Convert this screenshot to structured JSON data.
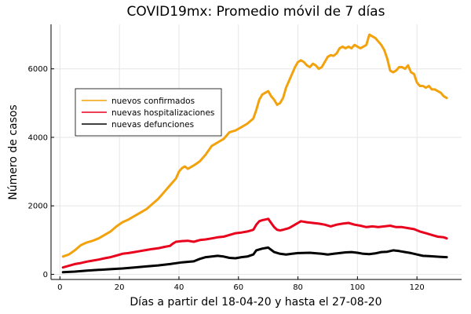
{
  "chart_data": {
    "type": "line",
    "title": "COVID19mx: Promedio móvil de 7 días",
    "xlabel": "Días a partir del 18-04-20 y hasta el 27-08-20",
    "ylabel": "Número de casos",
    "xlim": [
      -3,
      135
    ],
    "ylim": [
      -150,
      7300
    ],
    "xticks": [
      0,
      20,
      40,
      60,
      80,
      100,
      120
    ],
    "yticks": [
      0,
      2000,
      4000,
      6000
    ],
    "grid": true,
    "legend_position": "upper-left",
    "series": [
      {
        "name": "nuevos confirmados",
        "color": "#f2a20c",
        "points": [
          [
            1,
            520
          ],
          [
            3,
            580
          ],
          [
            5,
            700
          ],
          [
            7,
            850
          ],
          [
            9,
            930
          ],
          [
            11,
            980
          ],
          [
            13,
            1050
          ],
          [
            15,
            1150
          ],
          [
            17,
            1250
          ],
          [
            19,
            1400
          ],
          [
            21,
            1520
          ],
          [
            23,
            1600
          ],
          [
            25,
            1700
          ],
          [
            27,
            1800
          ],
          [
            29,
            1900
          ],
          [
            31,
            2050
          ],
          [
            33,
            2200
          ],
          [
            35,
            2400
          ],
          [
            37,
            2600
          ],
          [
            39,
            2800
          ],
          [
            40,
            3000
          ],
          [
            41,
            3100
          ],
          [
            42,
            3150
          ],
          [
            43,
            3080
          ],
          [
            45,
            3180
          ],
          [
            47,
            3300
          ],
          [
            49,
            3500
          ],
          [
            51,
            3750
          ],
          [
            53,
            3850
          ],
          [
            55,
            3950
          ],
          [
            57,
            4150
          ],
          [
            59,
            4200
          ],
          [
            61,
            4300
          ],
          [
            63,
            4400
          ],
          [
            65,
            4550
          ],
          [
            66,
            4800
          ],
          [
            67,
            5100
          ],
          [
            68,
            5250
          ],
          [
            69,
            5300
          ],
          [
            70,
            5350
          ],
          [
            71,
            5200
          ],
          [
            72,
            5100
          ],
          [
            73,
            4950
          ],
          [
            74,
            5000
          ],
          [
            75,
            5150
          ],
          [
            76,
            5450
          ],
          [
            77,
            5650
          ],
          [
            78,
            5850
          ],
          [
            79,
            6050
          ],
          [
            80,
            6200
          ],
          [
            81,
            6250
          ],
          [
            82,
            6200
          ],
          [
            83,
            6100
          ],
          [
            84,
            6050
          ],
          [
            85,
            6150
          ],
          [
            86,
            6100
          ],
          [
            87,
            6000
          ],
          [
            88,
            6050
          ],
          [
            89,
            6200
          ],
          [
            90,
            6350
          ],
          [
            91,
            6400
          ],
          [
            92,
            6380
          ],
          [
            93,
            6450
          ],
          [
            94,
            6600
          ],
          [
            95,
            6650
          ],
          [
            96,
            6600
          ],
          [
            97,
            6650
          ],
          [
            98,
            6600
          ],
          [
            99,
            6700
          ],
          [
            100,
            6650
          ],
          [
            101,
            6600
          ],
          [
            102,
            6650
          ],
          [
            103,
            6700
          ],
          [
            104,
            7000
          ],
          [
            105,
            6950
          ],
          [
            106,
            6900
          ],
          [
            107,
            6800
          ],
          [
            108,
            6700
          ],
          [
            109,
            6550
          ],
          [
            110,
            6300
          ],
          [
            111,
            5950
          ],
          [
            112,
            5900
          ],
          [
            113,
            5950
          ],
          [
            114,
            6050
          ],
          [
            115,
            6050
          ],
          [
            116,
            6000
          ],
          [
            117,
            6100
          ],
          [
            118,
            5900
          ],
          [
            119,
            5850
          ],
          [
            120,
            5600
          ],
          [
            121,
            5500
          ],
          [
            122,
            5500
          ],
          [
            123,
            5450
          ],
          [
            124,
            5500
          ],
          [
            125,
            5400
          ],
          [
            126,
            5400
          ],
          [
            127,
            5350
          ],
          [
            128,
            5300
          ],
          [
            129,
            5200
          ],
          [
            130,
            5150
          ]
        ]
      },
      {
        "name": "nuevas hospitalizaciones",
        "color": "#e8001c",
        "points": [
          [
            1,
            200
          ],
          [
            3,
            250
          ],
          [
            5,
            300
          ],
          [
            7,
            330
          ],
          [
            9,
            370
          ],
          [
            11,
            400
          ],
          [
            13,
            430
          ],
          [
            15,
            470
          ],
          [
            17,
            500
          ],
          [
            19,
            550
          ],
          [
            21,
            600
          ],
          [
            23,
            620
          ],
          [
            25,
            650
          ],
          [
            27,
            680
          ],
          [
            29,
            710
          ],
          [
            31,
            740
          ],
          [
            33,
            760
          ],
          [
            35,
            800
          ],
          [
            37,
            830
          ],
          [
            38,
            900
          ],
          [
            39,
            950
          ],
          [
            41,
            970
          ],
          [
            43,
            980
          ],
          [
            45,
            950
          ],
          [
            47,
            1000
          ],
          [
            49,
            1020
          ],
          [
            51,
            1050
          ],
          [
            53,
            1080
          ],
          [
            55,
            1100
          ],
          [
            57,
            1150
          ],
          [
            59,
            1200
          ],
          [
            61,
            1220
          ],
          [
            63,
            1250
          ],
          [
            65,
            1300
          ],
          [
            66,
            1450
          ],
          [
            67,
            1550
          ],
          [
            68,
            1580
          ],
          [
            69,
            1600
          ],
          [
            70,
            1620
          ],
          [
            71,
            1500
          ],
          [
            72,
            1380
          ],
          [
            73,
            1300
          ],
          [
            74,
            1280
          ],
          [
            75,
            1300
          ],
          [
            77,
            1350
          ],
          [
            79,
            1450
          ],
          [
            81,
            1550
          ],
          [
            83,
            1520
          ],
          [
            85,
            1500
          ],
          [
            87,
            1480
          ],
          [
            89,
            1450
          ],
          [
            91,
            1400
          ],
          [
            93,
            1450
          ],
          [
            95,
            1480
          ],
          [
            97,
            1500
          ],
          [
            99,
            1450
          ],
          [
            101,
            1420
          ],
          [
            103,
            1380
          ],
          [
            105,
            1400
          ],
          [
            107,
            1380
          ],
          [
            109,
            1400
          ],
          [
            111,
            1420
          ],
          [
            113,
            1380
          ],
          [
            115,
            1380
          ],
          [
            117,
            1350
          ],
          [
            119,
            1320
          ],
          [
            121,
            1250
          ],
          [
            123,
            1200
          ],
          [
            125,
            1150
          ],
          [
            127,
            1100
          ],
          [
            129,
            1080
          ],
          [
            130,
            1050
          ]
        ]
      },
      {
        "name": "nuevas defunciones",
        "color": "#000000",
        "points": [
          [
            1,
            60
          ],
          [
            5,
            80
          ],
          [
            9,
            110
          ],
          [
            13,
            130
          ],
          [
            17,
            150
          ],
          [
            21,
            170
          ],
          [
            25,
            200
          ],
          [
            29,
            230
          ],
          [
            33,
            260
          ],
          [
            37,
            300
          ],
          [
            41,
            350
          ],
          [
            45,
            380
          ],
          [
            47,
            450
          ],
          [
            49,
            500
          ],
          [
            51,
            520
          ],
          [
            53,
            540
          ],
          [
            55,
            520
          ],
          [
            57,
            480
          ],
          [
            59,
            470
          ],
          [
            61,
            500
          ],
          [
            63,
            520
          ],
          [
            65,
            580
          ],
          [
            66,
            700
          ],
          [
            68,
            750
          ],
          [
            70,
            780
          ],
          [
            72,
            650
          ],
          [
            74,
            600
          ],
          [
            76,
            580
          ],
          [
            78,
            600
          ],
          [
            80,
            620
          ],
          [
            84,
            630
          ],
          [
            88,
            600
          ],
          [
            90,
            580
          ],
          [
            92,
            600
          ],
          [
            94,
            620
          ],
          [
            96,
            640
          ],
          [
            98,
            650
          ],
          [
            100,
            630
          ],
          [
            102,
            600
          ],
          [
            104,
            590
          ],
          [
            106,
            610
          ],
          [
            108,
            650
          ],
          [
            110,
            660
          ],
          [
            112,
            700
          ],
          [
            114,
            680
          ],
          [
            116,
            650
          ],
          [
            118,
            620
          ],
          [
            120,
            580
          ],
          [
            122,
            540
          ],
          [
            124,
            530
          ],
          [
            126,
            520
          ],
          [
            128,
            510
          ],
          [
            130,
            500
          ]
        ]
      }
    ]
  }
}
